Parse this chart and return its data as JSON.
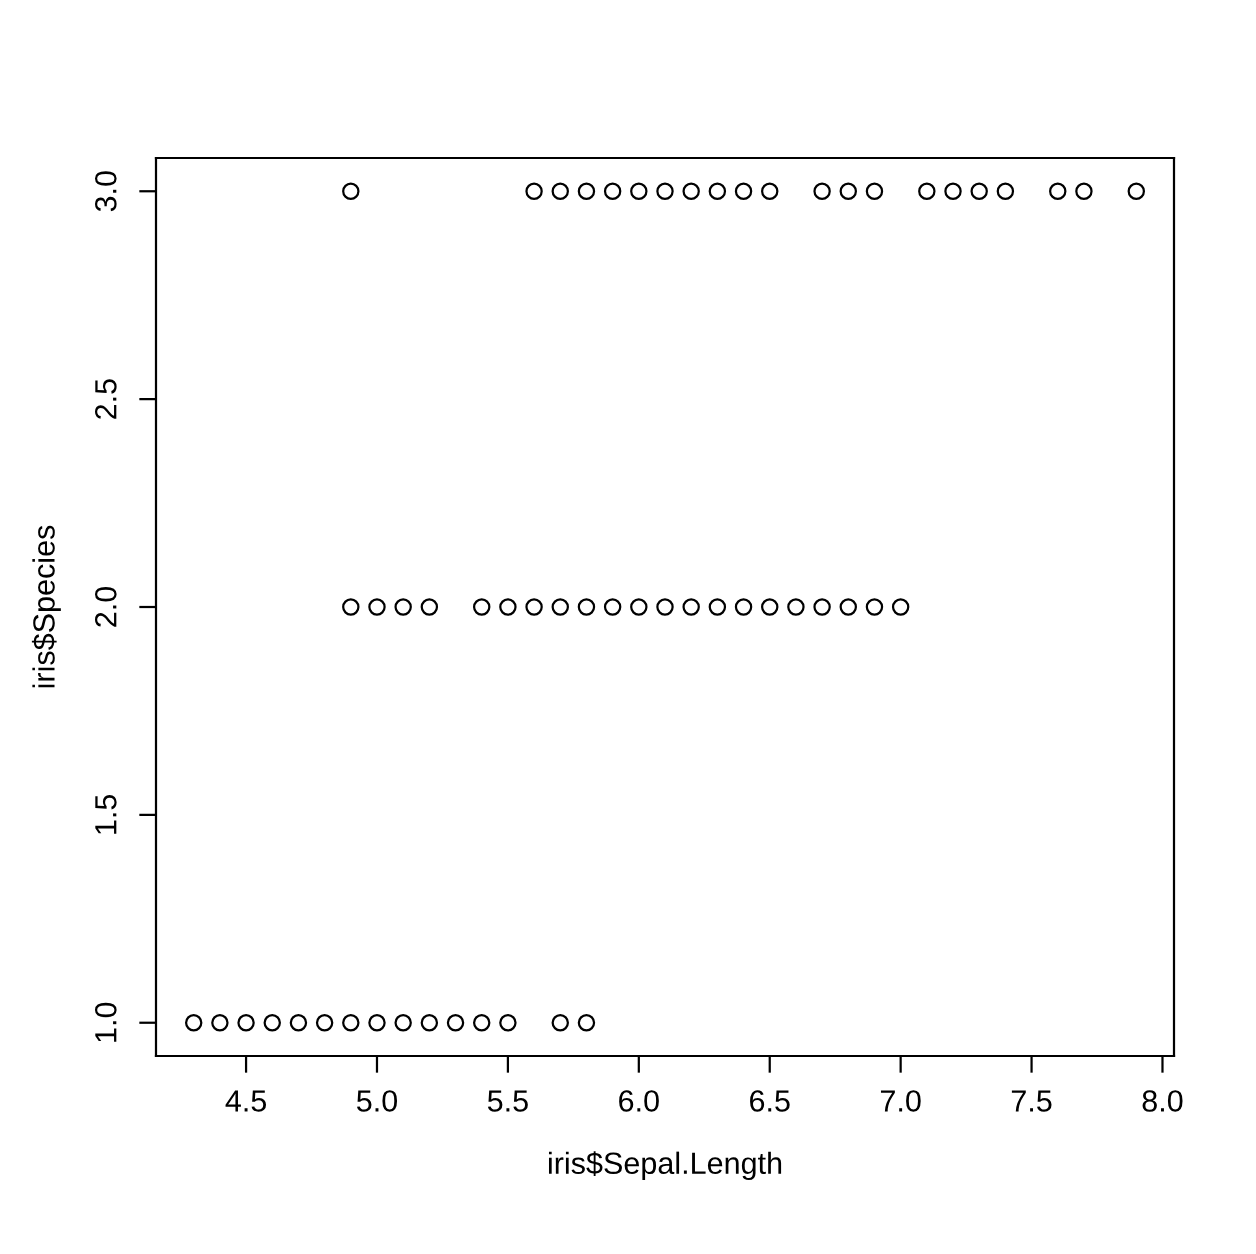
{
  "chart_data": {
    "type": "scatter",
    "xlabel": "iris$Sepal.Length",
    "ylabel": "iris$Species",
    "series": [
      {
        "color": "#000000",
        "x": [
          4.3,
          4.4,
          4.5,
          4.6,
          4.7,
          4.8,
          4.9,
          5.0,
          5.1,
          5.2,
          5.3,
          5.4,
          5.5,
          5.7,
          5.8,
          4.9,
          5.0,
          5.1,
          5.2,
          5.4,
          5.5,
          5.6,
          5.7,
          5.8,
          5.9,
          6.0,
          6.1,
          6.2,
          6.3,
          6.4,
          6.5,
          6.6,
          6.7,
          6.8,
          6.9,
          7.0,
          4.9,
          5.6,
          5.7,
          5.8,
          5.9,
          6.0,
          6.1,
          6.2,
          6.3,
          6.4,
          6.5,
          6.7,
          6.8,
          6.9,
          7.1,
          7.2,
          7.3,
          7.4,
          7.6,
          7.7,
          7.9
        ],
        "values": [
          1,
          1,
          1,
          1,
          1,
          1,
          1,
          1,
          1,
          1,
          1,
          1,
          1,
          1,
          1,
          2,
          2,
          2,
          2,
          2,
          2,
          2,
          2,
          2,
          2,
          2,
          2,
          2,
          2,
          2,
          2,
          2,
          2,
          2,
          2,
          2,
          3,
          3,
          3,
          3,
          3,
          3,
          3,
          3,
          3,
          3,
          3,
          3,
          3,
          3,
          3,
          3,
          3,
          3,
          3,
          3,
          3
        ]
      }
    ],
    "xlim": [
      4.156,
      8.044
    ],
    "ylim": [
      0.92,
      3.08
    ],
    "xticks": [
      {
        "value": 4.5,
        "label": "4.5"
      },
      {
        "value": 5.0,
        "label": "5.0"
      },
      {
        "value": 5.5,
        "label": "5.5"
      },
      {
        "value": 6.0,
        "label": "6.0"
      },
      {
        "value": 6.5,
        "label": "6.5"
      },
      {
        "value": 7.0,
        "label": "7.0"
      },
      {
        "value": 7.5,
        "label": "7.5"
      },
      {
        "value": 8.0,
        "label": "8.0"
      }
    ],
    "yticks": [
      {
        "value": 1.0,
        "label": "1.0"
      },
      {
        "value": 1.5,
        "label": "1.5"
      },
      {
        "value": 2.0,
        "label": "2.0"
      },
      {
        "value": 2.5,
        "label": "2.5"
      },
      {
        "value": 3.0,
        "label": "3.0"
      }
    ],
    "marker": "circle",
    "grid": false,
    "legend": false
  }
}
